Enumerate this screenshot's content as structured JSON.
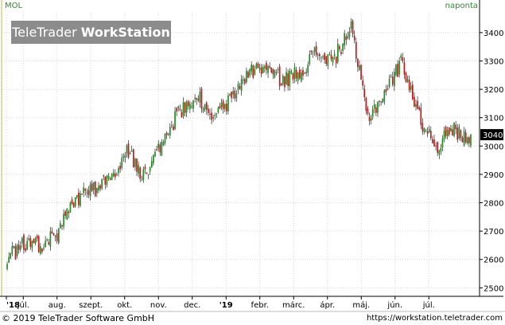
{
  "symbol": "MOL",
  "interval": "naponta",
  "watermark": {
    "part1": "TeleTrader",
    "part2": "WorkStation"
  },
  "footer": {
    "copyright": "© 2019 TeleTrader Software GmbH",
    "url": "https://workstation.teletrader.com"
  },
  "colors": {
    "up": "#1e8c1e",
    "down": "#c01818",
    "grid": "#d6d6d6",
    "axis": "#000000"
  },
  "chart_data": {
    "type": "candlestick",
    "title": "",
    "xlabel": "",
    "ylabel": "",
    "ylim": [
      2470,
      3470
    ],
    "y_ticks": [
      2500,
      2600,
      2700,
      2800,
      2900,
      3000,
      3100,
      3200,
      3300,
      3400
    ],
    "x_ticks": [
      {
        "label": "'18",
        "bold": true,
        "pos": 0.0
      },
      {
        "label": "júl.",
        "bold": false,
        "pos": 0.5
      },
      {
        "label": "aug.",
        "bold": false,
        "pos": 1.5
      },
      {
        "label": "szept.",
        "bold": false,
        "pos": 2.5
      },
      {
        "label": "okt.",
        "bold": false,
        "pos": 3.5
      },
      {
        "label": "nov.",
        "bold": false,
        "pos": 4.5
      },
      {
        "label": "dec.",
        "bold": false,
        "pos": 5.5
      },
      {
        "label": "'19",
        "bold": true,
        "pos": 6.5
      },
      {
        "label": "febr.",
        "bold": false,
        "pos": 7.5
      },
      {
        "label": "márc.",
        "bold": false,
        "pos": 8.5
      },
      {
        "label": "ápr.",
        "bold": false,
        "pos": 9.5
      },
      {
        "label": "máj.",
        "bold": false,
        "pos": 10.5
      },
      {
        "label": "jún.",
        "bold": false,
        "pos": 11.5
      },
      {
        "label": "júl.",
        "bold": false,
        "pos": 12.5
      }
    ],
    "last_value": "3040",
    "last_price": 3040,
    "monthly_close_path": [
      [
        0.0,
        2600
      ],
      [
        0.5,
        2660
      ],
      [
        1.0,
        2640
      ],
      [
        1.5,
        2700
      ],
      [
        2.0,
        2810
      ],
      [
        2.5,
        2850
      ],
      [
        3.0,
        2880
      ],
      [
        3.5,
        2980
      ],
      [
        4.0,
        2890
      ],
      [
        4.5,
        3010
      ],
      [
        5.0,
        3120
      ],
      [
        5.5,
        3180
      ],
      [
        6.0,
        3100
      ],
      [
        6.5,
        3160
      ],
      [
        7.0,
        3260
      ],
      [
        7.5,
        3280
      ],
      [
        8.0,
        3230
      ],
      [
        8.5,
        3260
      ],
      [
        9.0,
        3330
      ],
      [
        9.5,
        3300
      ],
      [
        10.0,
        3420
      ],
      [
        10.5,
        3100
      ],
      [
        11.0,
        3190
      ],
      [
        11.5,
        3300
      ],
      [
        12.0,
        3100
      ],
      [
        12.5,
        3000
      ],
      [
        13.0,
        3060
      ],
      [
        13.5,
        3010
      ]
    ]
  }
}
